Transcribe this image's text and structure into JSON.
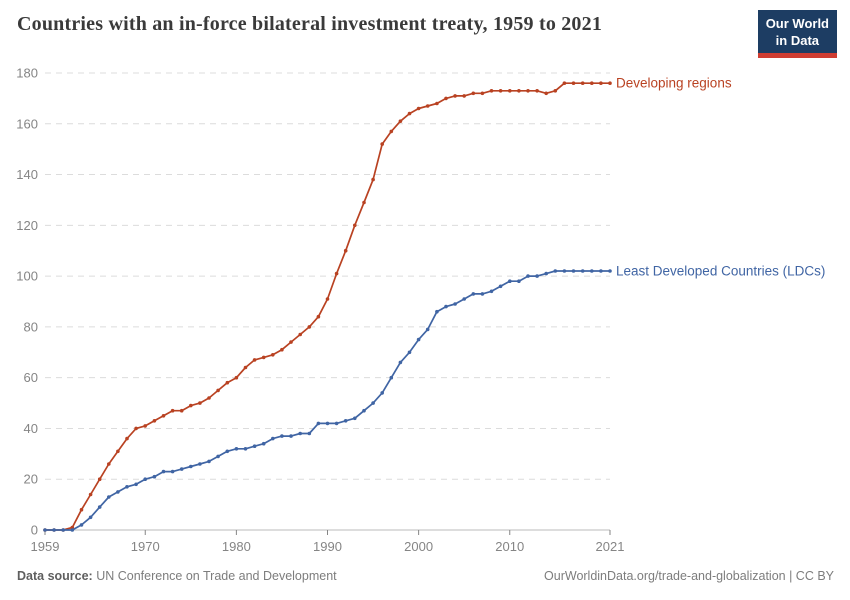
{
  "header": {
    "title": "Countries with an in-force bilateral investment treaty, 1959 to 2021",
    "logo": {
      "line1": "Our World",
      "line2": "in Data"
    }
  },
  "footer": {
    "source_label": "Data source:",
    "source_value": " UN Conference on Trade and Development",
    "right": "OurWorldinData.org/trade-and-globalization | CC BY"
  },
  "colors": {
    "developing_regions": "#b94222",
    "ldcs": "#4065a4",
    "grid": "#dcdcdc",
    "axis": "#bbbbbb",
    "tick_text": "#858585",
    "title_text": "#3a3a3a",
    "footer_text": "#7d7d7d",
    "logo_bg": "#1d3d63",
    "logo_stripe": "#cf3d32"
  },
  "chart_data": {
    "type": "line",
    "title": "Countries with an in-force bilateral investment treaty, 1959 to 2021",
    "xlabel": "",
    "ylabel": "",
    "xlim": [
      1959,
      2021
    ],
    "ylim": [
      0,
      180
    ],
    "xticks": [
      1959,
      1970,
      1980,
      1990,
      2000,
      2010,
      2021
    ],
    "yticks": [
      0,
      20,
      40,
      60,
      80,
      100,
      120,
      140,
      160,
      180
    ],
    "grid": "horizontal-dashed",
    "legend_position": "line-end-labels",
    "x": [
      1959,
      1960,
      1961,
      1962,
      1963,
      1964,
      1965,
      1966,
      1967,
      1968,
      1969,
      1970,
      1971,
      1972,
      1973,
      1974,
      1975,
      1976,
      1977,
      1978,
      1979,
      1980,
      1981,
      1982,
      1983,
      1984,
      1985,
      1986,
      1987,
      1988,
      1989,
      1990,
      1991,
      1992,
      1993,
      1994,
      1995,
      1996,
      1997,
      1998,
      1999,
      2000,
      2001,
      2002,
      2003,
      2004,
      2005,
      2006,
      2007,
      2008,
      2009,
      2010,
      2011,
      2012,
      2013,
      2014,
      2015,
      2016,
      2017,
      2018,
      2019,
      2020,
      2021
    ],
    "series": [
      {
        "name": "Developing regions",
        "color": "#b94222",
        "values": [
          0,
          0,
          0,
          1,
          8,
          14,
          20,
          26,
          31,
          36,
          40,
          41,
          43,
          45,
          47,
          47,
          49,
          50,
          52,
          55,
          58,
          60,
          64,
          67,
          68,
          69,
          71,
          74,
          77,
          80,
          84,
          91,
          101,
          110,
          120,
          129,
          138,
          152,
          157,
          161,
          164,
          166,
          167,
          168,
          170,
          171,
          171,
          172,
          172,
          173,
          173,
          173,
          173,
          173,
          173,
          172,
          173,
          176,
          176,
          176,
          176,
          176,
          176
        ]
      },
      {
        "name": "Least Developed Countries (LDCs)",
        "color": "#4065a4",
        "values": [
          0,
          0,
          0,
          0,
          2,
          5,
          9,
          13,
          15,
          17,
          18,
          20,
          21,
          23,
          23,
          24,
          25,
          26,
          27,
          29,
          31,
          32,
          32,
          33,
          34,
          36,
          37,
          37,
          38,
          38,
          42,
          42,
          42,
          43,
          44,
          47,
          50,
          54,
          60,
          66,
          70,
          75,
          79,
          86,
          88,
          89,
          91,
          93,
          93,
          94,
          96,
          98,
          98,
          100,
          100,
          101,
          102,
          102,
          102,
          102,
          102,
          102,
          102
        ]
      }
    ]
  }
}
